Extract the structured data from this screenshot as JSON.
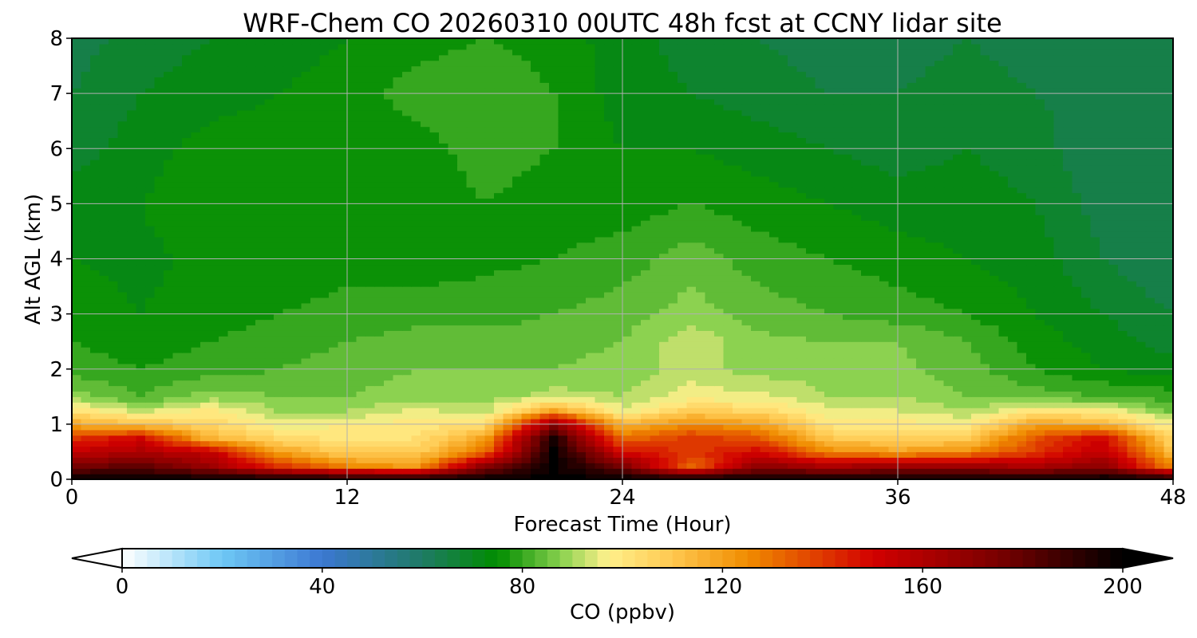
{
  "chart_data": {
    "type": "heatmap",
    "title": "WRF-Chem CO  20260310 00UTC 48h fcst at CCNY lidar site",
    "xlabel": "Forecast Time (Hour)",
    "ylabel": "Alt AGL (km)",
    "xlim": [
      0,
      48
    ],
    "ylim": [
      0,
      8
    ],
    "x_ticks": [
      0,
      12,
      24,
      36,
      48
    ],
    "y_ticks": [
      0,
      1,
      2,
      3,
      4,
      5,
      6,
      7,
      8
    ],
    "grid": true,
    "x": [
      0,
      3,
      6,
      9,
      12,
      15,
      18,
      21,
      24,
      27,
      30,
      33,
      36,
      39,
      42,
      45,
      48
    ],
    "y": [
      0,
      0.25,
      0.5,
      0.75,
      1.0,
      1.25,
      1.5,
      2,
      2.5,
      3,
      4,
      5,
      6,
      7,
      8
    ],
    "values": [
      [
        200,
        200,
        200,
        200,
        200,
        200,
        200,
        200,
        200,
        200,
        200,
        200,
        200,
        200,
        200,
        200,
        200
      ],
      [
        175,
        180,
        165,
        140,
        125,
        120,
        170,
        200,
        175,
        130,
        170,
        160,
        165,
        165,
        160,
        170,
        125
      ],
      [
        155,
        160,
        155,
        120,
        108,
        108,
        130,
        200,
        150,
        140,
        150,
        125,
        120,
        125,
        140,
        155,
        112
      ],
      [
        140,
        150,
        115,
        105,
        100,
        102,
        120,
        195,
        130,
        140,
        135,
        110,
        108,
        108,
        135,
        150,
        103
      ],
      [
        118,
        112,
        105,
        95,
        98,
        100,
        102,
        170,
        115,
        125,
        120,
        100,
        100,
        98,
        120,
        115,
        95
      ],
      [
        102,
        92,
        100,
        90,
        90,
        95,
        92,
        120,
        95,
        108,
        105,
        95,
        94,
        90,
        100,
        98,
        85
      ],
      [
        88,
        82,
        88,
        86,
        86,
        88,
        88,
        92,
        90,
        96,
        95,
        90,
        90,
        86,
        84,
        82,
        80
      ],
      [
        80,
        78,
        80,
        82,
        84,
        86,
        86,
        86,
        87,
        92,
        88,
        88,
        87,
        84,
        78,
        74,
        72
      ],
      [
        78,
        76,
        78,
        80,
        82,
        84,
        84,
        85,
        86,
        93,
        87,
        86,
        86,
        82,
        76,
        72,
        68
      ],
      [
        76,
        74,
        76,
        78,
        79,
        80,
        80,
        82,
        84,
        88,
        84,
        82,
        80,
        78,
        74,
        70,
        66
      ],
      [
        74,
        73,
        75,
        76,
        77,
        76,
        77,
        78,
        80,
        84,
        80,
        78,
        76,
        74,
        72,
        66,
        62
      ],
      [
        72,
        74,
        77,
        78,
        76,
        75,
        78,
        76,
        76,
        78,
        76,
        74,
        72,
        72,
        70,
        64,
        62
      ],
      [
        68,
        72,
        76,
        76,
        75,
        76,
        80,
        78,
        74,
        74,
        72,
        70,
        68,
        70,
        68,
        62,
        64
      ],
      [
        66,
        70,
        72,
        74,
        76,
        80,
        82,
        78,
        72,
        70,
        68,
        66,
        66,
        68,
        66,
        64,
        66
      ],
      [
        64,
        68,
        70,
        72,
        74,
        76,
        78,
        76,
        72,
        68,
        66,
        64,
        64,
        66,
        64,
        64,
        66
      ]
    ],
    "colorbar": {
      "label": "CO  (ppbv)",
      "vmin": 0,
      "vmax": 200,
      "ticks": [
        0,
        40,
        80,
        120,
        160,
        200
      ],
      "extend": "both",
      "stops": [
        {
          "v": 0,
          "c": "#ffffff"
        },
        {
          "v": 20,
          "c": "#6ec8f5"
        },
        {
          "v": 40,
          "c": "#3c78d2"
        },
        {
          "v": 60,
          "c": "#1e7a64"
        },
        {
          "v": 75,
          "c": "#008c00"
        },
        {
          "v": 88,
          "c": "#8cd250"
        },
        {
          "v": 97,
          "c": "#fff08c"
        },
        {
          "v": 110,
          "c": "#ffc850"
        },
        {
          "v": 125,
          "c": "#f08c00"
        },
        {
          "v": 150,
          "c": "#d20000"
        },
        {
          "v": 175,
          "c": "#7a0000"
        },
        {
          "v": 200,
          "c": "#000000"
        }
      ]
    }
  }
}
